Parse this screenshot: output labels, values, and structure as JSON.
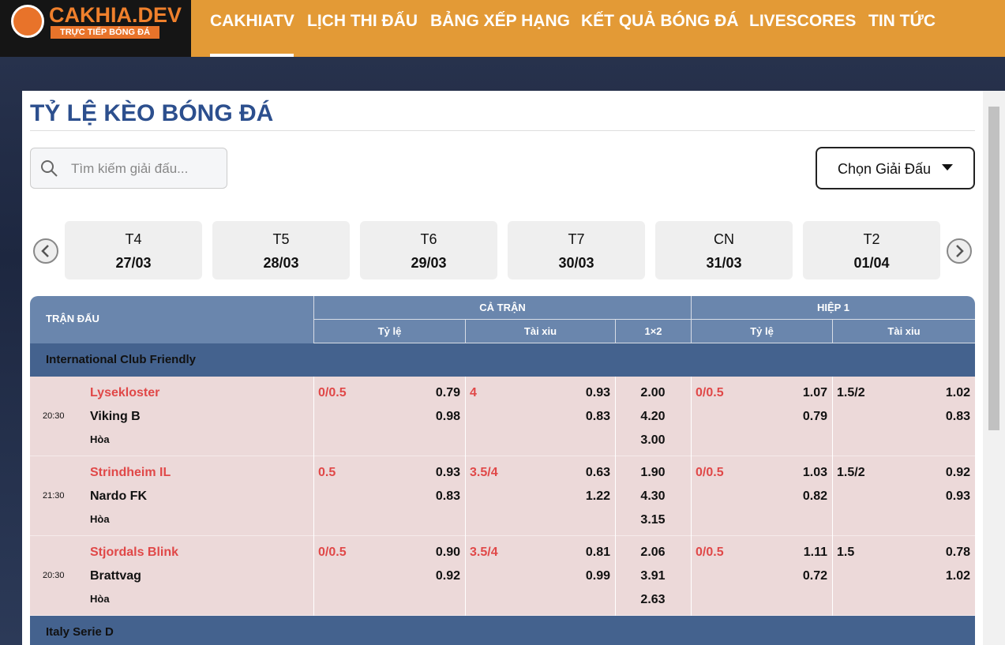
{
  "header": {
    "logo": "CAKHIA.DEV",
    "tagline": "TRỰC TIẾP BÓNG ĐÁ",
    "nav": [
      "CAKHIATV",
      "LỊCH THI ĐẤU",
      "BẢNG XẾP HẠNG",
      "KẾT QUẢ BÓNG ĐÁ",
      "LIVESCORES",
      "TIN TỨC"
    ]
  },
  "page": {
    "title": "TỶ LỆ KÈO BÓNG ĐÁ",
    "search_placeholder": "Tìm kiếm giải đấu...",
    "league_select": "Chọn Giải Đấu"
  },
  "dates": [
    {
      "day": "T4",
      "date": "27/03"
    },
    {
      "day": "T5",
      "date": "28/03"
    },
    {
      "day": "T6",
      "date": "29/03"
    },
    {
      "day": "T7",
      "date": "30/03"
    },
    {
      "day": "CN",
      "date": "31/03"
    },
    {
      "day": "T2",
      "date": "01/04"
    }
  ],
  "table": {
    "headers": {
      "match": "TRẬN ĐẤU",
      "full": "CẢ TRẬN",
      "half": "HIỆP 1",
      "full_cols": [
        "Tỷ lệ",
        "Tài xiu",
        "1×2"
      ],
      "half_cols": [
        "Tỷ lệ",
        "Tài xiu"
      ]
    },
    "leagues": [
      {
        "name": "International Club Friendly",
        "matches": [
          {
            "time": "20:30",
            "home": "Lysekloster",
            "away": "Viking B",
            "draw": "Hòa",
            "full_hdp": {
              "line": "0/0.5",
              "home": "0.79",
              "away": "0.98"
            },
            "full_ou": {
              "line": "4",
              "over": "0.93",
              "under": "0.83"
            },
            "full_1x2": [
              "2.00",
              "4.20",
              "3.00"
            ],
            "half_hdp": {
              "line": "0/0.5",
              "home": "1.07",
              "away": "0.79"
            },
            "half_ou": {
              "line": "1.5/2",
              "over": "1.02",
              "under": "0.83"
            }
          },
          {
            "time": "21:30",
            "home": "Strindheim IL",
            "away": "Nardo FK",
            "draw": "Hòa",
            "full_hdp": {
              "line": "0.5",
              "home": "0.93",
              "away": "0.83"
            },
            "full_ou": {
              "line": "3.5/4",
              "over": "0.63",
              "under": "1.22"
            },
            "full_1x2": [
              "1.90",
              "4.30",
              "3.15"
            ],
            "half_hdp": {
              "line": "0/0.5",
              "home": "1.03",
              "away": "0.82"
            },
            "half_ou": {
              "line": "1.5/2",
              "over": "0.92",
              "under": "0.93"
            }
          },
          {
            "time": "20:30",
            "home": "Stjordals Blink",
            "away": "Brattvag",
            "draw": "Hòa",
            "full_hdp": {
              "line": "0/0.5",
              "home": "0.90",
              "away": "0.92"
            },
            "full_ou": {
              "line": "3.5/4",
              "over": "0.81",
              "under": "0.99"
            },
            "full_1x2": [
              "2.06",
              "3.91",
              "2.63"
            ],
            "half_hdp": {
              "line": "0/0.5",
              "home": "1.11",
              "away": "0.72"
            },
            "half_ou": {
              "line": "1.5",
              "over": "0.78",
              "under": "1.02"
            }
          }
        ]
      },
      {
        "name": "Italy Serie D",
        "matches": []
      }
    ]
  }
}
